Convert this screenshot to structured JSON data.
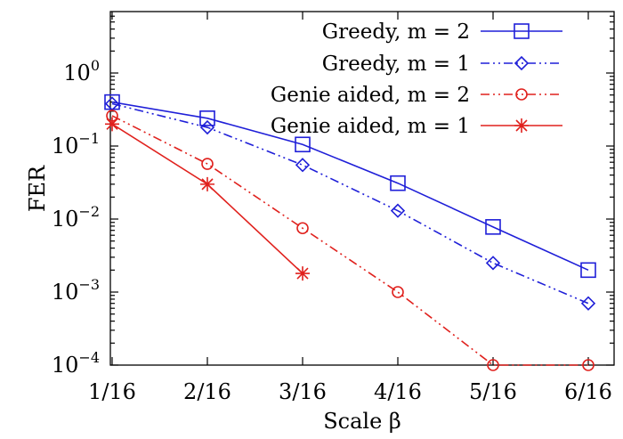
{
  "chart_data": {
    "type": "line",
    "title": "",
    "xlabel": "Scale β",
    "ylabel": "FER",
    "y_scale": "log",
    "ylim": [
      0.0001,
      7
    ],
    "categories": [
      "1/16",
      "2/16",
      "3/16",
      "4/16",
      "5/16",
      "6/16"
    ],
    "y_ticks": [
      {
        "value": 0.0001,
        "base": "10",
        "exp": "−4"
      },
      {
        "value": 0.001,
        "base": "10",
        "exp": "−3"
      },
      {
        "value": 0.01,
        "base": "10",
        "exp": "−2"
      },
      {
        "value": 0.1,
        "base": "10",
        "exp": "−1"
      },
      {
        "value": 1,
        "base": "10",
        "exp": "0"
      }
    ],
    "grid": false,
    "legend_position": "top-right",
    "series": [
      {
        "name": "Greedy, m = 2",
        "color": "#1f1fd8",
        "marker": "square",
        "dash": "solid",
        "values": [
          0.4,
          0.24,
          0.105,
          0.031,
          0.0078,
          0.002
        ]
      },
      {
        "name": "Greedy, m = 1",
        "color": "#1f1fd8",
        "marker": "diamond",
        "dash": "dashdotdot",
        "values": [
          0.38,
          0.18,
          0.055,
          0.013,
          0.0025,
          0.0007
        ]
      },
      {
        "name": "Genie aided, m = 2",
        "color": "#e0211d",
        "marker": "circle",
        "dash": "dashdotdot",
        "values": [
          0.26,
          0.057,
          0.0075,
          0.001,
          0.0001,
          0.0001
        ]
      },
      {
        "name": "Genie aided, m = 1",
        "color": "#e0211d",
        "marker": "star",
        "dash": "solid",
        "values": [
          0.2,
          0.03,
          0.0018,
          null,
          null,
          null
        ]
      }
    ]
  }
}
